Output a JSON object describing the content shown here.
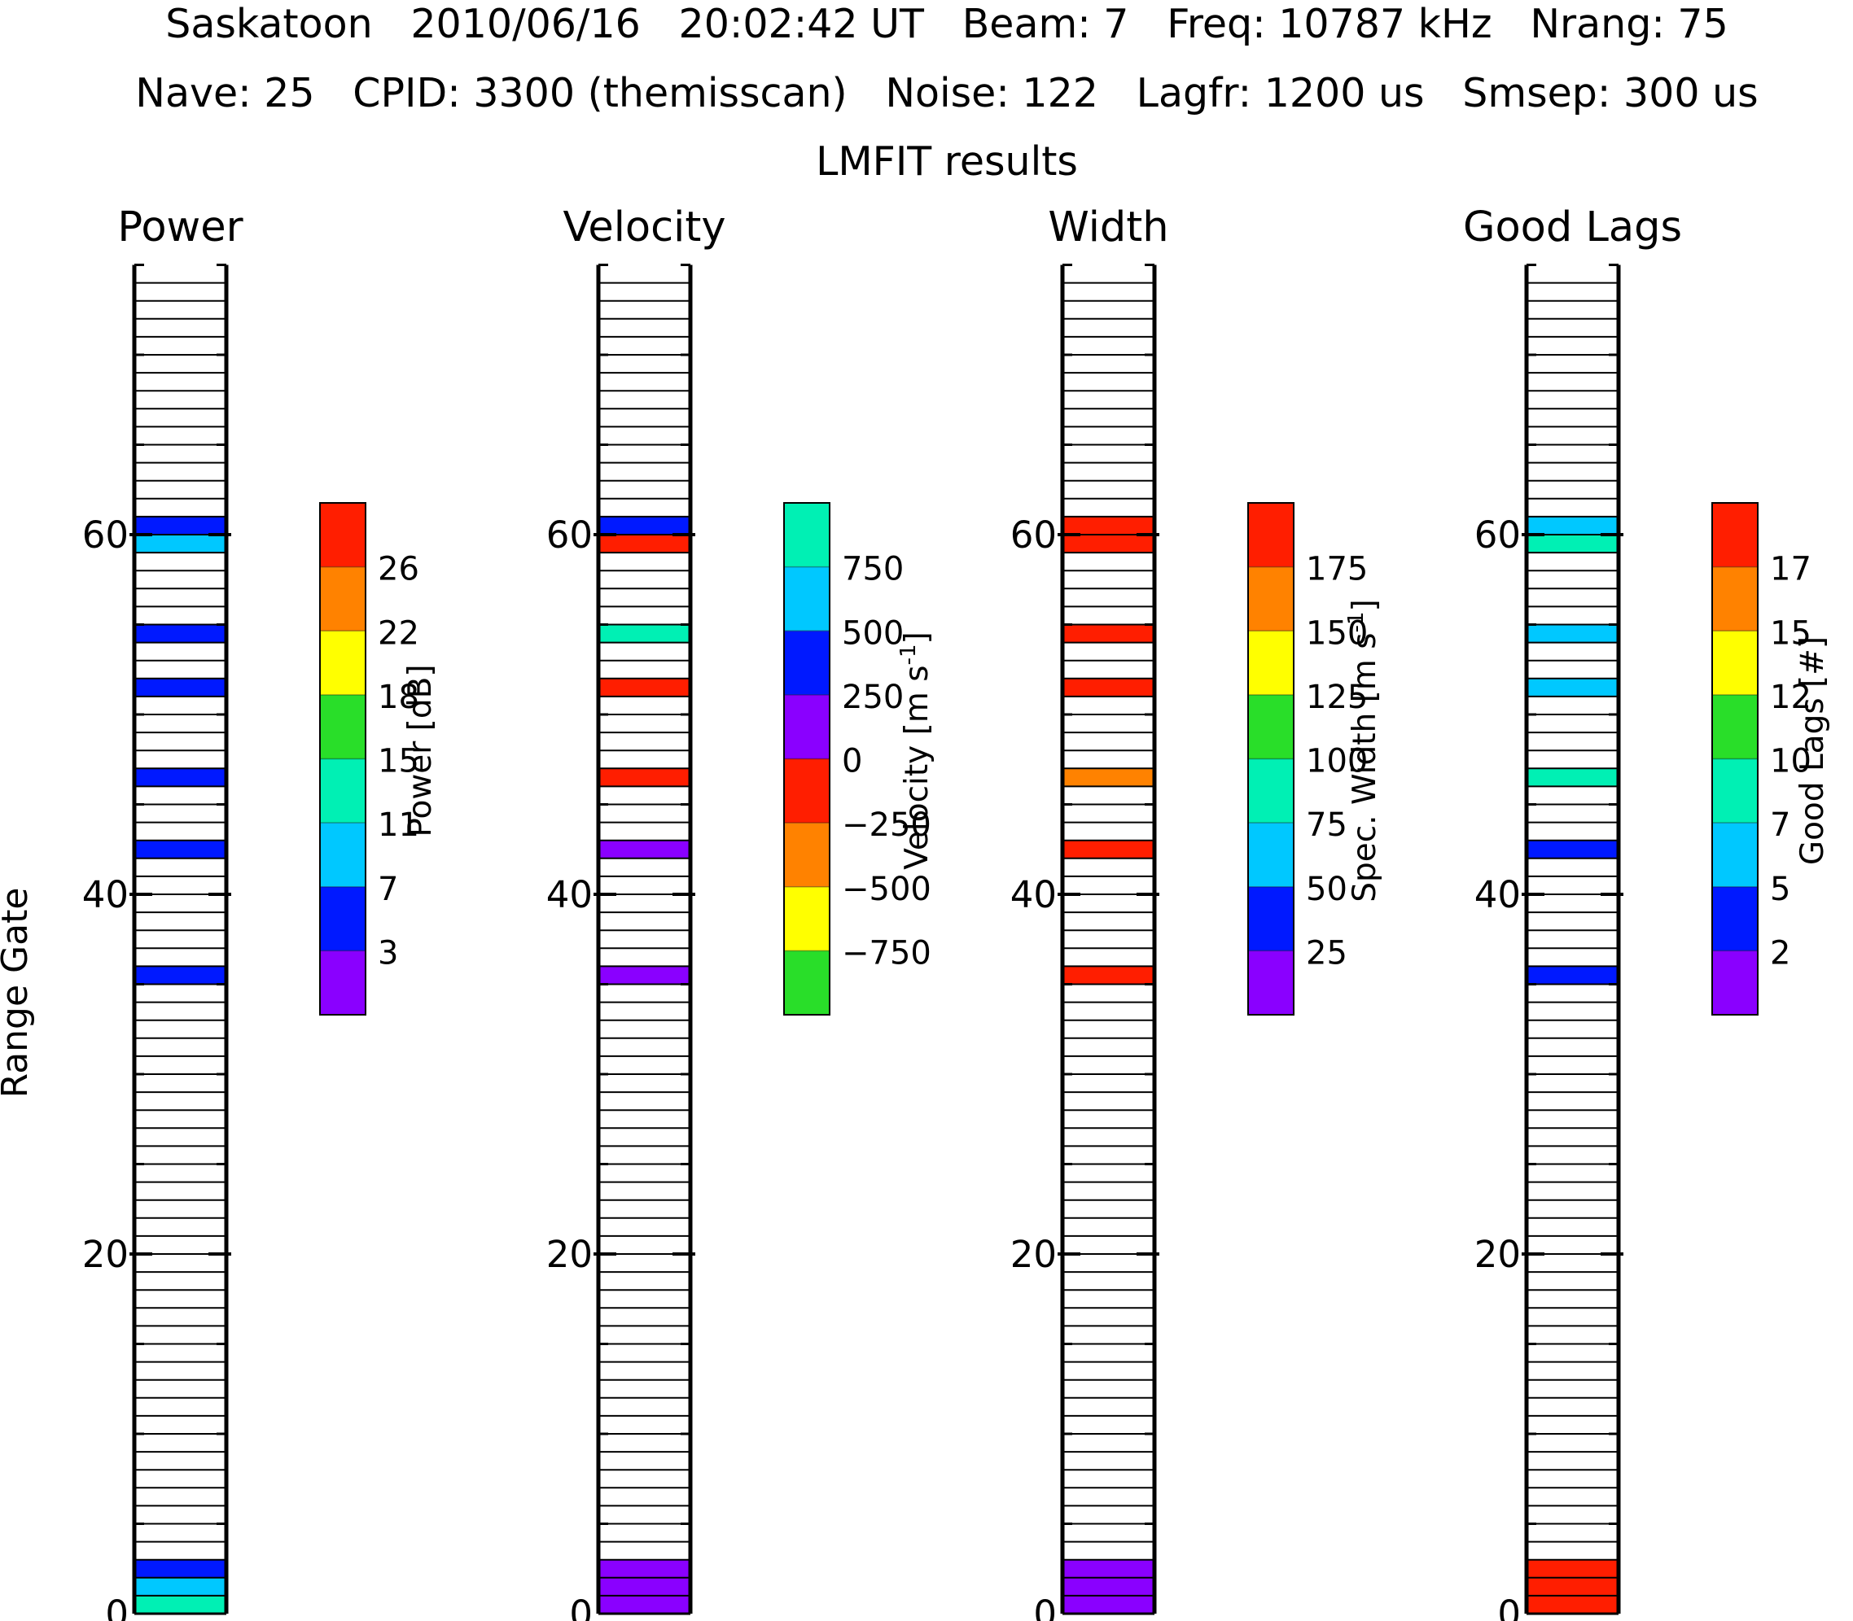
{
  "header": {
    "line1": "Saskatoon   2010/06/16   20:02:42 UT   Beam: 7   Freq: 10787 kHz   Nrang: 75",
    "line2": "Nave: 25   CPID: 3300 (themisscan)   Noise: 122   Lagfr: 1200 us   Smsep: 300 us",
    "line3": "LMFIT results"
  },
  "y_axis_label": "Range Gate",
  "colors": {
    "purple": "#8a00ff",
    "blue": "#0019ff",
    "cyan": "#00c8ff",
    "teal": "#00f0b4",
    "green": "#29de29",
    "yellow": "#ffff00",
    "orange": "#ff8200",
    "red": "#ff1e00"
  },
  "chart_data": [
    {
      "type": "heatmap",
      "title": "Power",
      "ylabel": "Range Gate",
      "ylim": [
        0,
        75
      ],
      "yticks": [
        "0",
        "20",
        "40",
        "60"
      ],
      "colorbar": {
        "label": "Power [dB]",
        "colors": [
          "purple",
          "blue",
          "cyan",
          "teal",
          "green",
          "yellow",
          "orange",
          "red"
        ],
        "tick_labels": [
          "3",
          "7",
          "11",
          "15",
          "18",
          "22",
          "26"
        ]
      },
      "cells": [
        {
          "gate": 0,
          "color": "teal"
        },
        {
          "gate": 1,
          "color": "cyan"
        },
        {
          "gate": 2,
          "color": "blue"
        },
        {
          "gate": 35,
          "color": "blue"
        },
        {
          "gate": 42,
          "color": "blue"
        },
        {
          "gate": 46,
          "color": "blue"
        },
        {
          "gate": 51,
          "color": "blue"
        },
        {
          "gate": 54,
          "color": "blue"
        },
        {
          "gate": 59,
          "color": "cyan"
        },
        {
          "gate": 60,
          "color": "blue"
        }
      ]
    },
    {
      "type": "heatmap",
      "title": "Velocity",
      "ylim": [
        0,
        75
      ],
      "yticks": [
        "0",
        "20",
        "40",
        "60"
      ],
      "colorbar": {
        "label": "Velocity [m s^-1]",
        "colors": [
          "green",
          "yellow",
          "orange",
          "red",
          "purple",
          "blue",
          "cyan",
          "teal"
        ],
        "tick_labels": [
          "−750",
          "−500",
          "−250",
          "0",
          "250",
          "500",
          "750"
        ]
      },
      "cells": [
        {
          "gate": 0,
          "color": "purple"
        },
        {
          "gate": 1,
          "color": "purple"
        },
        {
          "gate": 2,
          "color": "purple"
        },
        {
          "gate": 35,
          "color": "purple"
        },
        {
          "gate": 42,
          "color": "purple"
        },
        {
          "gate": 46,
          "color": "red"
        },
        {
          "gate": 51,
          "color": "red"
        },
        {
          "gate": 54,
          "color": "teal"
        },
        {
          "gate": 59,
          "color": "red"
        },
        {
          "gate": 60,
          "color": "blue"
        }
      ]
    },
    {
      "type": "heatmap",
      "title": "Width",
      "ylim": [
        0,
        75
      ],
      "yticks": [
        "0",
        "20",
        "40",
        "60"
      ],
      "colorbar": {
        "label": "Spec. Width [m s^-1]",
        "colors": [
          "purple",
          "blue",
          "cyan",
          "teal",
          "green",
          "yellow",
          "orange",
          "red"
        ],
        "tick_labels": [
          "25",
          "50",
          "75",
          "100",
          "125",
          "150",
          "175"
        ]
      },
      "cells": [
        {
          "gate": 0,
          "color": "purple"
        },
        {
          "gate": 1,
          "color": "purple"
        },
        {
          "gate": 2,
          "color": "purple"
        },
        {
          "gate": 35,
          "color": "red"
        },
        {
          "gate": 42,
          "color": "red"
        },
        {
          "gate": 46,
          "color": "orange"
        },
        {
          "gate": 51,
          "color": "red"
        },
        {
          "gate": 54,
          "color": "red"
        },
        {
          "gate": 59,
          "color": "red"
        },
        {
          "gate": 60,
          "color": "red"
        }
      ]
    },
    {
      "type": "heatmap",
      "title": "Good Lags",
      "ylim": [
        0,
        75
      ],
      "yticks": [
        "0",
        "20",
        "40",
        "60"
      ],
      "colorbar": {
        "label": "Good Lags [#]",
        "colors": [
          "purple",
          "blue",
          "cyan",
          "teal",
          "green",
          "yellow",
          "orange",
          "red"
        ],
        "tick_labels": [
          "2",
          "5",
          "7",
          "10",
          "12",
          "15",
          "17"
        ]
      },
      "cells": [
        {
          "gate": 0,
          "color": "red"
        },
        {
          "gate": 1,
          "color": "red"
        },
        {
          "gate": 2,
          "color": "red"
        },
        {
          "gate": 35,
          "color": "blue"
        },
        {
          "gate": 42,
          "color": "blue"
        },
        {
          "gate": 46,
          "color": "teal"
        },
        {
          "gate": 51,
          "color": "cyan"
        },
        {
          "gate": 54,
          "color": "cyan"
        },
        {
          "gate": 59,
          "color": "teal"
        },
        {
          "gate": 60,
          "color": "cyan"
        }
      ]
    }
  ]
}
